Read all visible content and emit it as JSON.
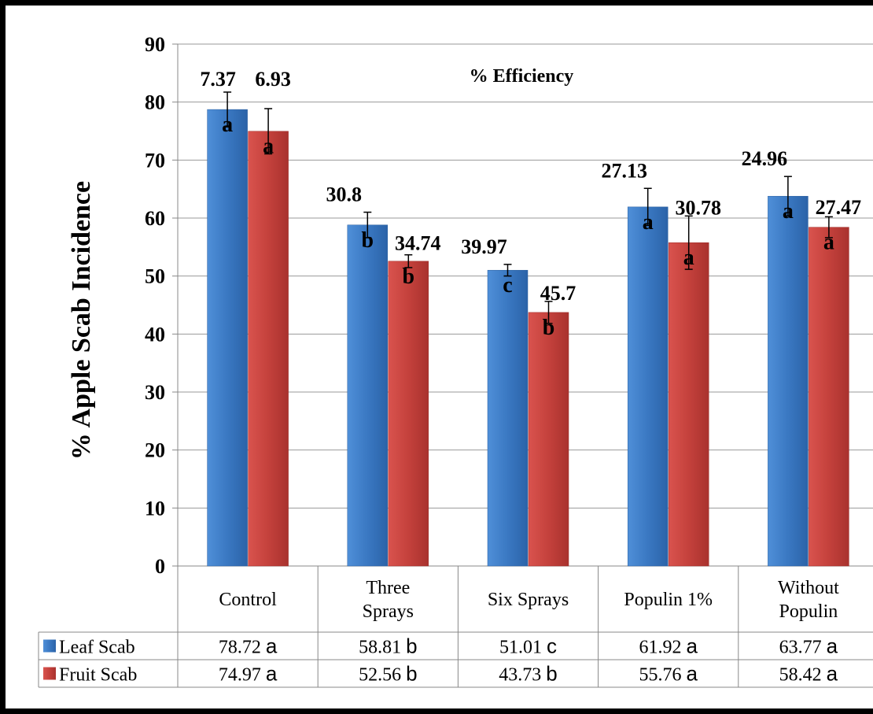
{
  "chart_data": {
    "type": "bar",
    "title": "% Efficiency",
    "ylabel": "% Apple Scab Incidence",
    "xlabel": "",
    "ylim": [
      0,
      90
    ],
    "yticks": [
      0,
      10,
      20,
      30,
      40,
      50,
      60,
      70,
      80,
      90
    ],
    "grid": true,
    "categories": [
      [
        "Control"
      ],
      [
        "Three",
        "Sprays"
      ],
      [
        "Six Sprays"
      ],
      [
        "Populin 1%"
      ],
      [
        "Without",
        "Populin"
      ]
    ],
    "series": [
      {
        "name": "Leaf Scab",
        "color": "#3a78c2",
        "values": [
          78.72,
          58.81,
          51.01,
          61.92,
          63.77
        ],
        "errors": [
          3.0,
          2.2,
          1.0,
          3.2,
          3.4
        ],
        "letters": [
          "a",
          "b",
          "c",
          "a",
          "a"
        ],
        "efficiency": [
          "7.37",
          "30.8",
          "39.97",
          "27.13",
          "24.96"
        ],
        "table": [
          [
            "78.72",
            "a"
          ],
          [
            "58.81",
            "b"
          ],
          [
            "51.01",
            "c"
          ],
          [
            "61.92",
            "a"
          ],
          [
            "63.77",
            "a"
          ]
        ]
      },
      {
        "name": "Fruit Scab",
        "color": "#c4413c",
        "values": [
          74.97,
          52.56,
          43.73,
          55.76,
          58.42
        ],
        "errors": [
          3.9,
          1.1,
          1.9,
          4.6,
          1.8
        ],
        "letters": [
          "a",
          "b",
          "b",
          "a",
          "a"
        ],
        "efficiency": [
          "6.93",
          "34.74",
          "45.7",
          "30.78",
          "27.47"
        ],
        "table": [
          [
            "74.97",
            "a"
          ],
          [
            "52.56",
            "b"
          ],
          [
            "43.73",
            "b"
          ],
          [
            "55.76",
            "a"
          ],
          [
            "58.42",
            "a"
          ]
        ]
      }
    ]
  }
}
